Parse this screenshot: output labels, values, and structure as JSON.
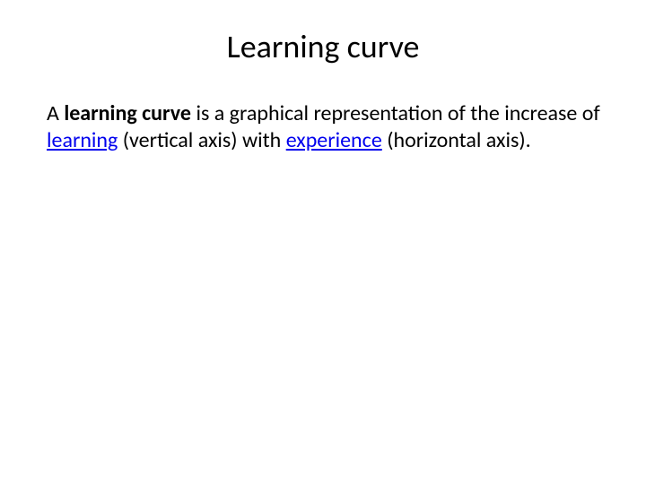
{
  "slide": {
    "title": "Learning curve",
    "body": {
      "prefix": "A ",
      "bold_term": "learning curve",
      "mid1": " is a graphical representation of the increase of ",
      "link1": "learning",
      "mid2": " (vertical axis) with ",
      "link2": "experience",
      "suffix": " (horizontal axis)."
    },
    "colors": {
      "background": "#ffffff",
      "text": "#000000",
      "link": "#0000ee"
    },
    "typography": {
      "title_fontsize": 36,
      "body_fontsize": 24,
      "font_family": "Calibri"
    }
  }
}
